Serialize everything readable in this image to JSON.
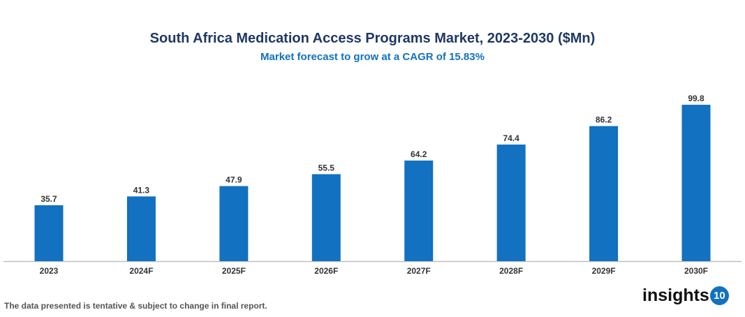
{
  "chart_data": {
    "type": "bar",
    "title": "South Africa Medication Access Programs Market, 2023-2030 ($Mn)",
    "subtitle": "Market forecast to grow at a CAGR of 15.83%",
    "categories": [
      "2023",
      "2024F",
      "2025F",
      "2026F",
      "2027F",
      "2028F",
      "2029F",
      "2030F"
    ],
    "values": [
      35.7,
      41.3,
      47.9,
      55.5,
      64.2,
      74.4,
      86.2,
      99.8
    ],
    "value_labels": [
      "35.7",
      "41.3",
      "47.9",
      "55.5",
      "64.2",
      "74.4",
      "86.2",
      "99.8"
    ],
    "xlabel": "",
    "ylabel": "",
    "ylim": [
      0,
      100
    ],
    "grid": false,
    "bar_color": "#1271c0"
  },
  "footer": {
    "note": "The data presented is tentative & subject to change in final report.",
    "logo_text": "insights",
    "logo_number": "10"
  }
}
